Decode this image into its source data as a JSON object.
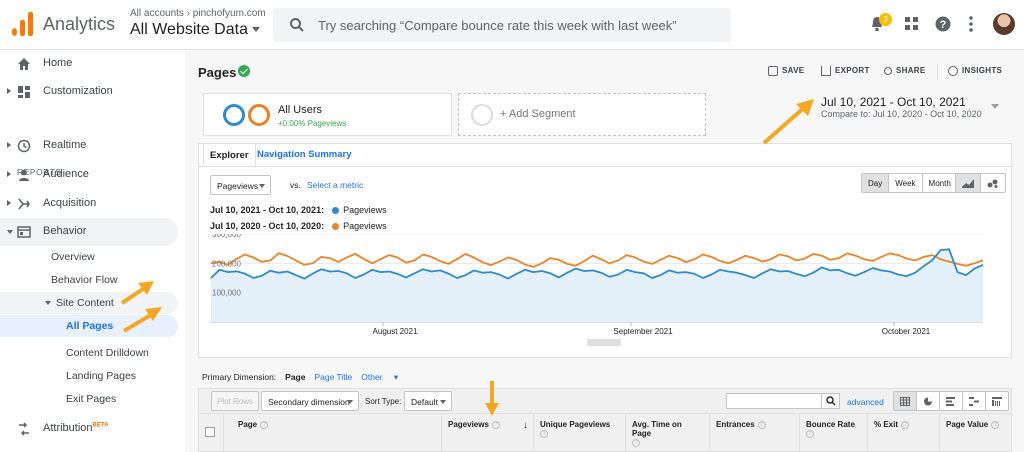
{
  "header": {
    "app_name": "Analytics",
    "account_crumb": "All accounts › pinchofyum.com",
    "account_name": "All Website Data",
    "search_placeholder": "Try searching “Compare bounce rate this week with last week”",
    "notification_count": "3"
  },
  "sidebar": {
    "reports_header": "REPORTS",
    "items": [
      {
        "label": "Home",
        "icon": "home-icon"
      },
      {
        "label": "Customization",
        "icon": "dashboard-icon"
      },
      {
        "label": "Realtime",
        "icon": "clock-icon"
      },
      {
        "label": "Audience",
        "icon": "person-icon"
      },
      {
        "label": "Acquisition",
        "icon": "acquisition-icon"
      },
      {
        "label": "Behavior",
        "icon": "behavior-icon"
      }
    ],
    "behavior_children": [
      "Overview",
      "Behavior Flow",
      "Site Content"
    ],
    "site_content_children": [
      "All Pages",
      "Content Drilldown",
      "Landing Pages",
      "Exit Pages"
    ],
    "attribution": "Attribution",
    "attribution_badge": "BETA"
  },
  "report": {
    "title": "Pages",
    "actions": [
      "SAVE",
      "EXPORT",
      "SHARE",
      "INSIGHTS"
    ],
    "segment": {
      "name": "All Users",
      "detail": "+0.00% Pageviews",
      "add_label": "+ Add Segment"
    },
    "date_range": "Jul 10, 2021 - Oct 10, 2021",
    "compare_prefix": "Compare to:",
    "compare_range": "Jul 10, 2020 - Oct 10, 2020",
    "tabs": [
      "Explorer",
      "Navigation Summary"
    ],
    "metric_select": "Pageviews",
    "vs_label": "vs.",
    "select_metric": "Select a metric",
    "granularity": [
      "Day",
      "Week",
      "Month"
    ],
    "granularity_selected": "Day"
  },
  "chart_data": {
    "type": "line",
    "series": [
      {
        "name": "Pageviews",
        "period": "Jul 10, 2021 - Oct 10, 2021:",
        "color": "#2e8bc9",
        "values": [
          150000,
          178000,
          170000,
          173000,
          165000,
          150000,
          158000,
          175000,
          168000,
          172000,
          160000,
          148000,
          165000,
          180000,
          172000,
          174000,
          166000,
          150000,
          162000,
          178000,
          170000,
          172000,
          164000,
          152000,
          166000,
          180000,
          172000,
          176000,
          165000,
          150000,
          160000,
          176000,
          168000,
          170000,
          162000,
          148000,
          164000,
          178000,
          170000,
          174000,
          166000,
          152000,
          168000,
          182000,
          174000,
          176000,
          168000,
          154000,
          162000,
          178000,
          170000,
          166000,
          150000,
          160000,
          176000,
          168000,
          170000,
          164000,
          150000,
          162000,
          178000,
          172000,
          168000,
          160000,
          150000,
          166000,
          180000,
          172000,
          174000,
          164000,
          156000,
          168000,
          186000,
          176000,
          178000,
          166000,
          158000,
          170000,
          184000,
          176000,
          172000,
          162000,
          156000,
          168000,
          190000,
          210000,
          245000,
          248000,
          170000,
          160000,
          182000,
          195000
        ]
      },
      {
        "name": "Pageviews",
        "period": "Jul 10, 2020 - Oct 10, 2020:",
        "color": "#e8832a",
        "values": [
          200000,
          205000,
          195000,
          215000,
          230000,
          220000,
          205000,
          210000,
          235000,
          225000,
          210000,
          195000,
          200000,
          222000,
          218000,
          205000,
          220000,
          232000,
          215000,
          200000,
          214000,
          228000,
          220000,
          202000,
          210000,
          230000,
          222000,
          208000,
          198000,
          214000,
          232000,
          220000,
          204000,
          194000,
          206000,
          220000,
          212000,
          196000,
          188000,
          200000,
          218000,
          212000,
          198000,
          192000,
          208000,
          226000,
          214000,
          200000,
          210000,
          228000,
          220000,
          206000,
          198000,
          212000,
          226000,
          218000,
          204000,
          214000,
          230000,
          222000,
          208000,
          200000,
          212000,
          226000,
          218000,
          206000,
          214000,
          230000,
          224000,
          210000,
          216000,
          232000,
          226000,
          212000,
          218000,
          234000,
          226000,
          214000,
          208000,
          222000,
          234000,
          228000,
          216000,
          210000,
          222000,
          228000,
          214000,
          206000,
          198000,
          192000,
          200000,
          210000
        ]
      }
    ],
    "y_ticks": [
      "300,000",
      "200,000",
      "100,000"
    ],
    "ylim": [
      0,
      300000
    ],
    "x_labels": [
      "August 2021",
      "September 2021",
      "October 2021"
    ],
    "grid": true
  },
  "table": {
    "primary_dimension_label": "Primary Dimension:",
    "dimensions": [
      "Page",
      "Page Title",
      "Other"
    ],
    "plot_rows": "Plot Rows",
    "secondary_dimension": "Secondary dimension",
    "sort_type_label": "Sort Type:",
    "sort_type_value": "Default",
    "advanced": "advanced",
    "columns": [
      "Page",
      "Pageviews",
      "Unique Pageviews",
      "Avg. Time on Page",
      "Entrances",
      "Bounce Rate",
      "% Exit",
      "Page Value"
    ]
  }
}
